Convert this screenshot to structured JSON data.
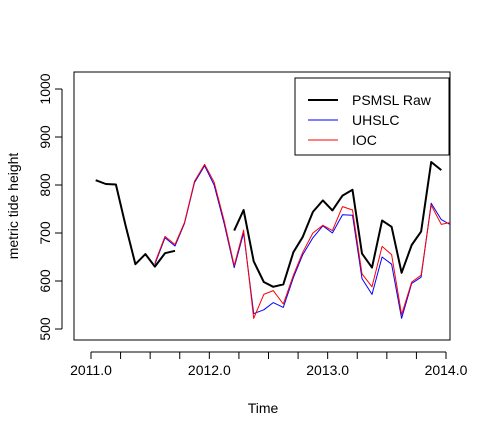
{
  "chart_data": {
    "type": "line",
    "title": "",
    "xlabel": "Time",
    "ylabel": "metric tide height",
    "xlim": [
      2011.0,
      2014.0
    ],
    "ylim": [
      485,
      1025
    ],
    "x_ticks": [
      2011.0,
      2012.0,
      2013.0,
      2014.0
    ],
    "x_tick_labels": [
      "2011.0",
      "2012.0",
      "2013.0",
      "2014.0"
    ],
    "y_ticks": [
      500,
      600,
      700,
      800,
      900,
      1000
    ],
    "y_tick_labels": [
      "500",
      "600",
      "700",
      "800",
      "900",
      "1000"
    ],
    "grid": false,
    "legend": {
      "position": "top-right",
      "entries": [
        {
          "label": "PSMSL Raw",
          "color": "#000000",
          "width": 2
        },
        {
          "label": "UHSLC",
          "color": "#0000ff",
          "width": 1
        },
        {
          "label": "IOC",
          "color": "#ff0000",
          "width": 1
        }
      ]
    },
    "series": [
      {
        "name": "PSMSL Raw",
        "color": "#000000",
        "width": 2,
        "x": [
          2011.04,
          2011.125,
          2011.21,
          2011.29,
          2011.375,
          2011.46,
          2011.54,
          2011.625,
          2011.71,
          null,
          2012.21,
          2012.29,
          2012.375,
          2012.46,
          2012.54,
          2012.625,
          2012.71,
          2012.79,
          2012.875,
          2012.96,
          2013.04,
          2013.125,
          2013.21,
          2013.29,
          2013.375,
          2013.46,
          2013.54,
          2013.625,
          2013.71,
          2013.79,
          2013.875,
          2013.96
        ],
        "y": [
          810,
          802,
          801,
          718,
          635,
          656,
          630,
          658,
          663,
          null,
          705,
          748,
          641,
          598,
          588,
          593,
          660,
          692,
          744,
          768,
          747,
          778,
          790,
          657,
          628,
          726,
          713,
          617,
          675,
          703,
          848,
          831
        ]
      },
      {
        "name": "UHSLC",
        "color": "#0000ff",
        "width": 1,
        "x": [
          2011.54,
          2011.625,
          2011.71,
          2011.79,
          2011.875,
          2011.96,
          2012.04,
          2012.125,
          2012.21,
          2012.29,
          2012.375,
          2012.46,
          2012.54,
          2012.625,
          2012.71,
          2012.79,
          2012.875,
          2012.96,
          2013.04,
          2013.125,
          2013.21,
          2013.29,
          2013.375,
          2013.46,
          2013.54,
          2013.625,
          2013.71,
          2013.79,
          2013.875,
          2013.96,
          2014.04
        ],
        "y": [
          635,
          690,
          673,
          720,
          805,
          840,
          800,
          720,
          628,
          700,
          532,
          540,
          555,
          545,
          607,
          655,
          690,
          715,
          700,
          738,
          737,
          605,
          572,
          650,
          635,
          522,
          595,
          608,
          762,
          728,
          717
        ]
      },
      {
        "name": "IOC",
        "color": "#ff0000",
        "width": 1,
        "x": [
          2011.54,
          2011.625,
          2011.71,
          2011.79,
          2011.875,
          2011.96,
          2012.04,
          2012.125,
          2012.21,
          2012.29,
          2012.375,
          2012.46,
          2012.54,
          2012.625,
          2012.71,
          2012.79,
          2012.875,
          2012.96,
          2013.04,
          2013.125,
          2013.21,
          2013.29,
          2013.375,
          2013.46,
          2013.54,
          2013.625,
          2013.71,
          2013.79,
          2013.875,
          2013.96,
          2014.04
        ],
        "y": [
          638,
          693,
          676,
          722,
          808,
          843,
          806,
          726,
          632,
          706,
          522,
          572,
          580,
          552,
          612,
          660,
          700,
          716,
          705,
          755,
          748,
          615,
          588,
          672,
          655,
          530,
          598,
          612,
          758,
          718,
          722
        ]
      }
    ]
  }
}
